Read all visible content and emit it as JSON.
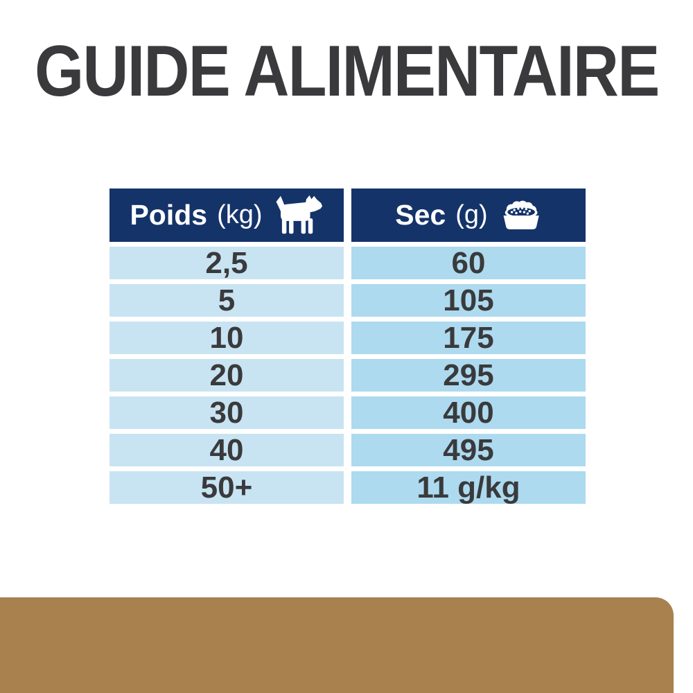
{
  "page": {
    "title": "GUIDE ALIMENTAIRE"
  },
  "colors": {
    "header_navy": "#143369",
    "row_blue_light": "#c8e4f3",
    "row_blue_medium": "#addaef",
    "text_charcoal": "#3a3a3c",
    "band_brown": "#a8814f",
    "header_text": "#ffffff",
    "background": "#ffffff"
  },
  "chart_data": {
    "type": "table",
    "title": "GUIDE ALIMENTAIRE",
    "columns": [
      {
        "label": "Poids",
        "unit": "(kg)",
        "icon": "dog-icon"
      },
      {
        "label": "Sec",
        "unit": "(g)",
        "icon": "food-bowl-icon"
      }
    ],
    "rows": [
      [
        "2,5",
        "60"
      ],
      [
        "5",
        "105"
      ],
      [
        "10",
        "175"
      ],
      [
        "20",
        "295"
      ],
      [
        "30",
        "400"
      ],
      [
        "40",
        "495"
      ],
      [
        "50+",
        "11 g/kg"
      ]
    ]
  }
}
